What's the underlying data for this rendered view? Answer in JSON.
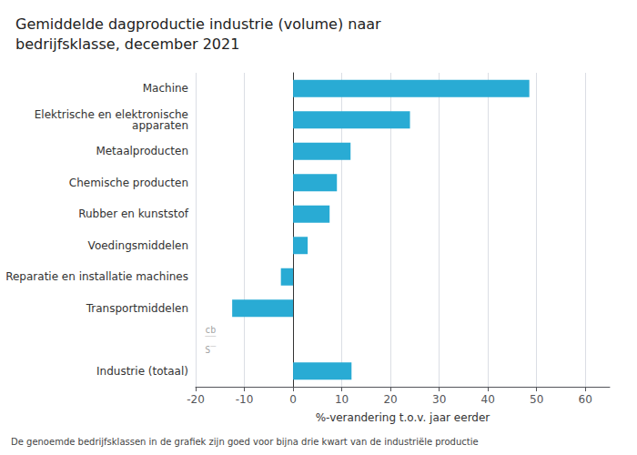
{
  "chart_data": {
    "type": "bar",
    "orientation": "horizontal",
    "title": "Gemiddelde dagproductie industrie (volume) naar\nbedrijfsklasse, december 2021",
    "categories": [
      "Machine",
      "Elektrische en elektronische\napparaten",
      "Metaalproducten",
      "Chemische producten",
      "Rubber en kunststof",
      "Voedingsmiddelen",
      "Reparatie en installatie machines",
      "Transportmiddelen",
      null,
      "Industrie (totaal)"
    ],
    "values": [
      48.5,
      24.0,
      11.8,
      9.0,
      7.5,
      3.0,
      -2.5,
      -12.5,
      null,
      12.0
    ],
    "color": "#29ABD4",
    "xlabel": "%-verandering t.o.v. jaar eerder",
    "xlim": [
      -20,
      65
    ],
    "xticks": [
      -20,
      -10,
      0,
      10,
      20,
      30,
      40,
      50,
      60
    ],
    "grid": true,
    "footnote": "De genoemde bedrijfsklassen in de grafiek zijn goed voor bijna drie kwart van de industriële productie",
    "annotations": [
      {
        "text": "cb\n‾‾\nS‾",
        "x": -19.0,
        "category": null
      }
    ]
  }
}
